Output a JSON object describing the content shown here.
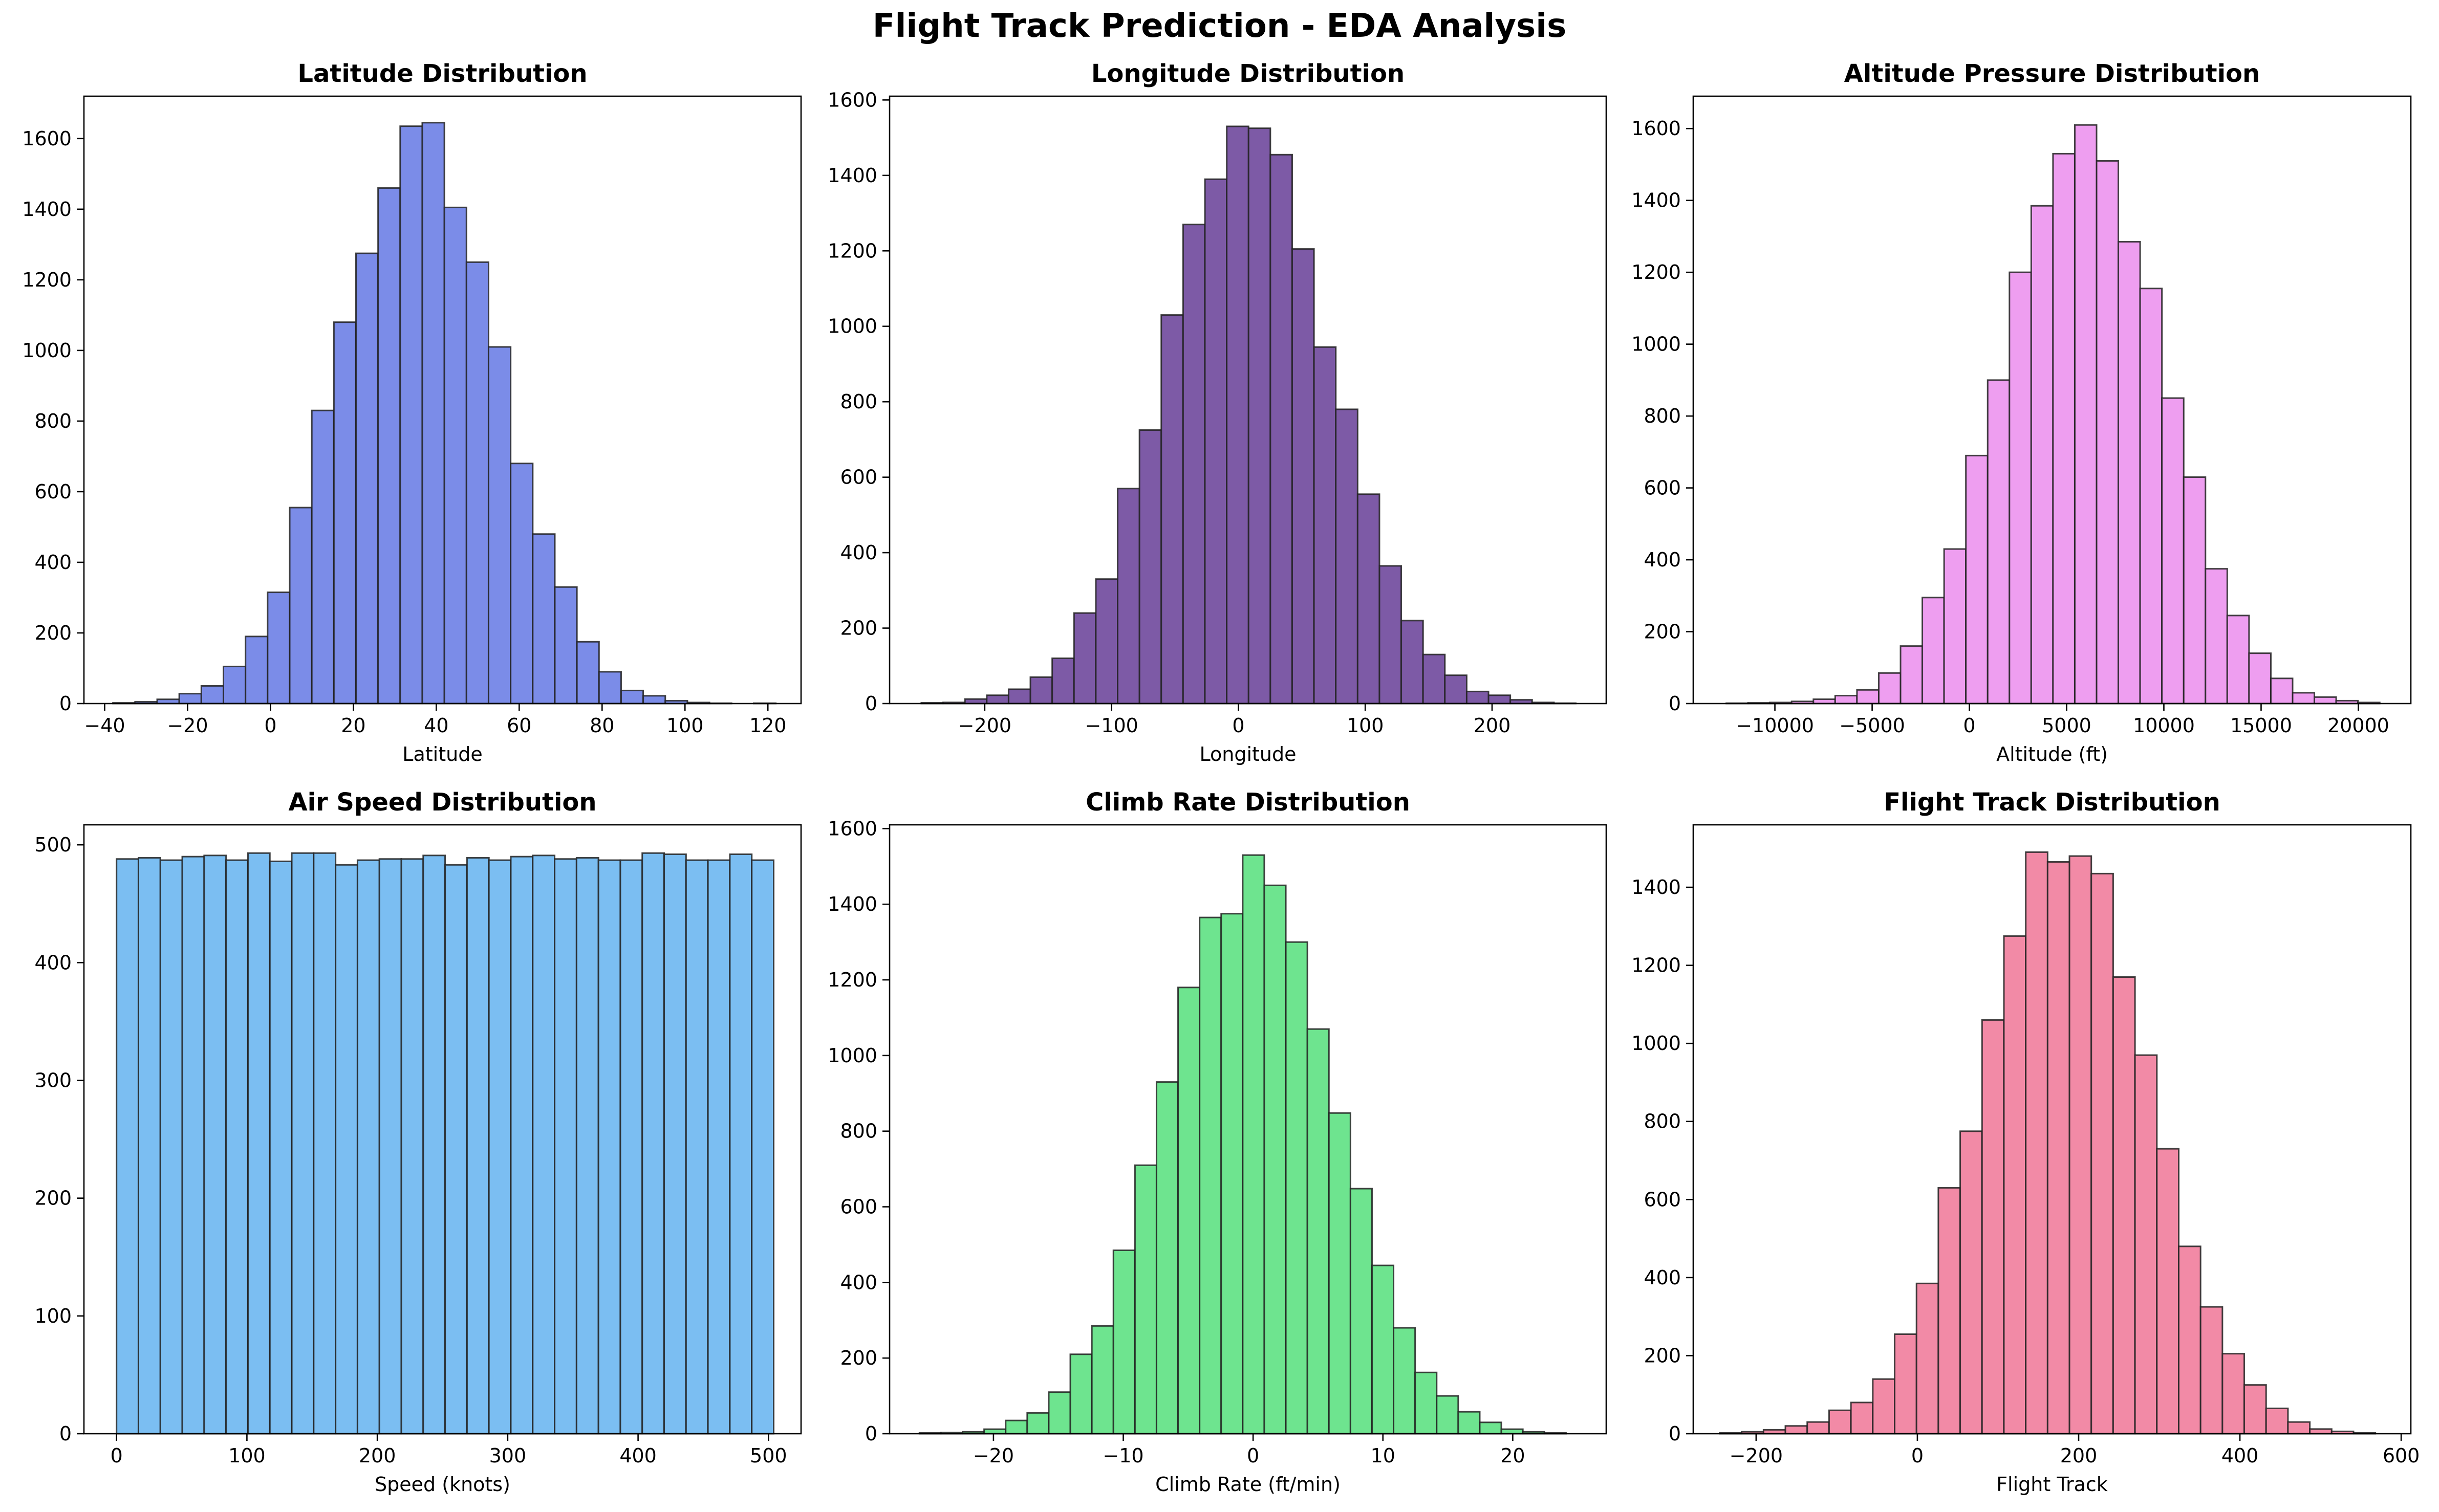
{
  "figure": {
    "title": "Flight Track Prediction - EDA Analysis"
  },
  "chart_data": [
    {
      "type": "bar",
      "title": "Latitude Distribution",
      "xlabel": "Latitude",
      "ylabel": "",
      "color": "#7b8ce8",
      "xlim": [
        -45,
        128
      ],
      "ylim": [
        0,
        1720
      ],
      "xticks": [
        -40,
        -20,
        0,
        20,
        40,
        60,
        80,
        100,
        120
      ],
      "yticks": [
        0,
        200,
        400,
        600,
        800,
        1000,
        1200,
        1400,
        1600
      ],
      "bin_start": -38,
      "bin_width": 5.33,
      "values": [
        2,
        5,
        12,
        28,
        50,
        105,
        190,
        315,
        555,
        830,
        1080,
        1275,
        1460,
        1635,
        1645,
        1405,
        1250,
        1010,
        680,
        480,
        330,
        175,
        90,
        37,
        22,
        8,
        3,
        1,
        0,
        1
      ]
    },
    {
      "type": "bar",
      "title": "Longitude Distribution",
      "xlabel": "Longitude",
      "ylabel": "",
      "color": "#7d5aa6",
      "xlim": [
        -275,
        290
      ],
      "ylim": [
        0,
        1610
      ],
      "xticks": [
        -200,
        -100,
        0,
        100,
        200
      ],
      "yticks": [
        0,
        200,
        400,
        600,
        800,
        1000,
        1200,
        1400,
        1600
      ],
      "bin_start": -250,
      "bin_width": 17.2,
      "values": [
        2,
        3,
        12,
        22,
        38,
        70,
        120,
        240,
        330,
        570,
        725,
        1030,
        1270,
        1390,
        1530,
        1525,
        1455,
        1205,
        945,
        780,
        555,
        365,
        220,
        130,
        75,
        32,
        22,
        10,
        3,
        1
      ]
    },
    {
      "type": "bar",
      "title": "Altitude Pressure Distribution",
      "xlabel": "Altitude (ft)",
      "ylabel": "",
      "color": "#ee9ef0",
      "xlim": [
        -14200,
        22700
      ],
      "ylim": [
        0,
        1690
      ],
      "xticks": [
        -10000,
        -5000,
        0,
        5000,
        10000,
        15000,
        20000
      ],
      "yticks": [
        0,
        200,
        400,
        600,
        800,
        1000,
        1200,
        1400,
        1600
      ],
      "bin_start": -12500,
      "bin_width": 1120,
      "values": [
        1,
        2,
        3,
        6,
        12,
        22,
        38,
        85,
        160,
        295,
        430,
        690,
        900,
        1200,
        1385,
        1530,
        1610,
        1510,
        1285,
        1155,
        850,
        630,
        375,
        245,
        140,
        70,
        30,
        18,
        8,
        3
      ]
    },
    {
      "type": "bar",
      "title": "Air Speed Distribution",
      "xlabel": "Speed (knots)",
      "ylabel": "",
      "color": "#7bbef2",
      "xlim": [
        -25,
        525
      ],
      "ylim": [
        0,
        517
      ],
      "xticks": [
        0,
        100,
        200,
        300,
        400,
        500
      ],
      "yticks": [
        0,
        100,
        200,
        300,
        400,
        500
      ],
      "bin_start": 0,
      "bin_width": 16.8,
      "values": [
        488,
        489,
        487,
        490,
        491,
        487,
        493,
        486,
        493,
        493,
        483,
        487,
        488,
        488,
        491,
        483,
        489,
        487,
        490,
        491,
        488,
        489,
        487,
        487,
        493,
        492,
        487,
        487,
        492,
        487
      ]
    },
    {
      "type": "bar",
      "title": "Climb Rate Distribution",
      "xlabel": "Climb Rate (ft/min)",
      "ylabel": "",
      "color": "#6ee48f",
      "xlim": [
        -28,
        27.2
      ],
      "ylim": [
        0,
        1610
      ],
      "xticks": [
        -20,
        -10,
        0,
        10,
        20
      ],
      "yticks": [
        0,
        200,
        400,
        600,
        800,
        1000,
        1200,
        1400,
        1600
      ],
      "bin_start": -25.7,
      "bin_width": 1.66,
      "values": [
        2,
        3,
        5,
        12,
        35,
        55,
        110,
        210,
        285,
        485,
        710,
        930,
        1180,
        1365,
        1375,
        1530,
        1450,
        1300,
        1070,
        848,
        648,
        445,
        280,
        162,
        100,
        58,
        30,
        12,
        5,
        2
      ]
    },
    {
      "type": "bar",
      "title": "Flight Track Distribution",
      "xlabel": "Flight Track",
      "ylabel": "",
      "color": "#f28aa6",
      "xlim": [
        -278,
        612
      ],
      "ylim": [
        0,
        1560
      ],
      "xticks": [
        -200,
        0,
        200,
        400,
        600
      ],
      "yticks": [
        0,
        200,
        400,
        600,
        800,
        1000,
        1200,
        1400
      ],
      "bin_start": -245,
      "bin_width": 27.1,
      "values": [
        2,
        5,
        10,
        20,
        30,
        60,
        80,
        140,
        255,
        385,
        630,
        775,
        1060,
        1275,
        1490,
        1465,
        1480,
        1435,
        1170,
        970,
        730,
        480,
        325,
        205,
        125,
        65,
        30,
        12,
        6,
        2
      ]
    }
  ]
}
